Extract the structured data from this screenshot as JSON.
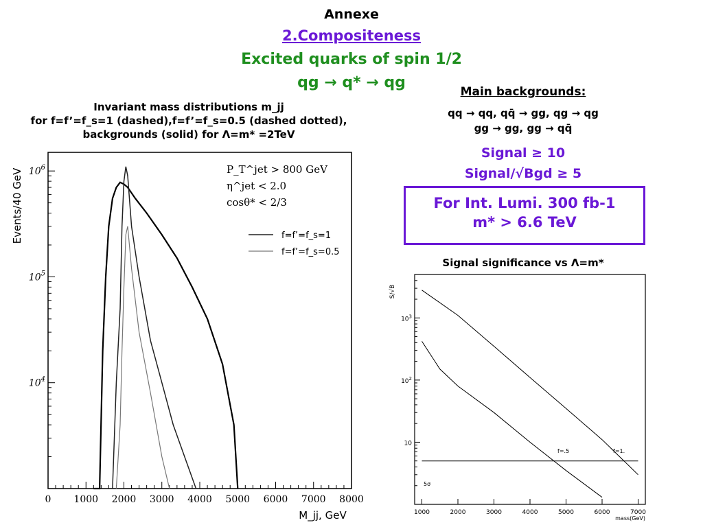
{
  "header": {
    "annexe": "Annexe",
    "section": "2.Compositeness",
    "subtitle": "Excited quarks of spin 1/2",
    "process": "qg → q* → qg"
  },
  "left_caption": {
    "line1": "Invariant mass distributions m_jj",
    "line2": "for f=f’=f_s=1 (dashed),f=f’=f_s=0.5 (dashed dotted),",
    "line3": "backgrounds (solid) for Λ=m* =2TeV"
  },
  "backgrounds": {
    "title": "Main backgrounds:",
    "line1": "qq → qq, qq̄ → gg, qg → qg",
    "line2": "gg → gg, gg → qq̄"
  },
  "signal": {
    "line1": "Signal ≥ 10",
    "line2": "Signal/√Bgd ≥ 5"
  },
  "lumi": {
    "line1": "For Int. Lumi. 300 fb-1",
    "line2": "m* > 6.6 TeV"
  },
  "right_caption": "Signal significance vs Λ=m*",
  "chart_data": [
    {
      "type": "line",
      "title": "",
      "xlabel": "M_jj, GeV",
      "ylabel": "Events/40 GeV",
      "xlim": [
        0,
        8000
      ],
      "ylim": [
        1000,
        1500000
      ],
      "yscale": "log",
      "x_ticks": [
        "0",
        "1000",
        "2000",
        "3000",
        "4000",
        "5000",
        "6000",
        "7000",
        "8000"
      ],
      "y_ticks": [
        "10^4",
        "10^5",
        "10^6"
      ],
      "cuts": [
        "P_T^jet > 800 GeV",
        "η^jet < 2.0",
        "cosθ* < 2/3"
      ],
      "legend_placement": "upper-right",
      "series": [
        {
          "name": "",
          "style": "solid",
          "x": [
            1200,
            1360,
            1440,
            1520,
            1600,
            1700,
            1800,
            1900,
            2000,
            2100,
            2300,
            2600,
            3000,
            3400,
            3800,
            4200,
            4600,
            4900,
            5000
          ],
          "y": [
            1000,
            1000,
            20000,
            100000,
            300000,
            550000,
            700000,
            780000,
            750000,
            700000,
            550000,
            400000,
            250000,
            150000,
            80000,
            40000,
            15000,
            4000,
            1000
          ]
        },
        {
          "name": "f=f’=f_s=1",
          "style": "dashed",
          "x": [
            1700,
            1800,
            1900,
            1950,
            2000,
            2050,
            2100,
            2200,
            2400,
            2700,
            3000,
            3300,
            3600,
            3900
          ],
          "y": [
            1000,
            10000,
            50000,
            300000,
            800000,
            1100000,
            900000,
            300000,
            100000,
            25000,
            10000,
            4000,
            2000,
            1000
          ]
        },
        {
          "name": "f=f’=f_s=0.5",
          "style": "dashdot",
          "x": [
            1800,
            1900,
            1950,
            2000,
            2050,
            2100,
            2200,
            2400,
            2700,
            3000,
            3200
          ],
          "y": [
            1000,
            4000,
            20000,
            80000,
            250000,
            300000,
            120000,
            30000,
            8000,
            2000,
            1000
          ]
        }
      ]
    },
    {
      "type": "line",
      "title": "Signal significance vs Λ=m*",
      "xlabel": "mass(GeV)",
      "ylabel": "S/√B",
      "xlim": [
        800,
        7200
      ],
      "ylim": [
        1,
        5000
      ],
      "yscale": "log",
      "x_ticks": [
        "1000",
        "2000",
        "3000",
        "4000",
        "5000",
        "6000",
        "7000"
      ],
      "y_ticks": [
        "10",
        "10^2",
        "10^3"
      ],
      "legend_placement": "inline",
      "series": [
        {
          "name": "f=1.",
          "x": [
            1000,
            2000,
            3000,
            4000,
            5000,
            6000,
            7000
          ],
          "y": [
            2800,
            1100,
            350,
            110,
            35,
            11,
            3
          ]
        },
        {
          "name": "f=.5",
          "x": [
            1000,
            1500,
            2000,
            3000,
            4000,
            5000,
            6000
          ],
          "y": [
            420,
            150,
            80,
            30,
            10,
            3.5,
            1.3
          ]
        },
        {
          "name": "5σ",
          "x": [
            1000,
            7000
          ],
          "y": [
            5,
            5
          ]
        }
      ]
    }
  ]
}
